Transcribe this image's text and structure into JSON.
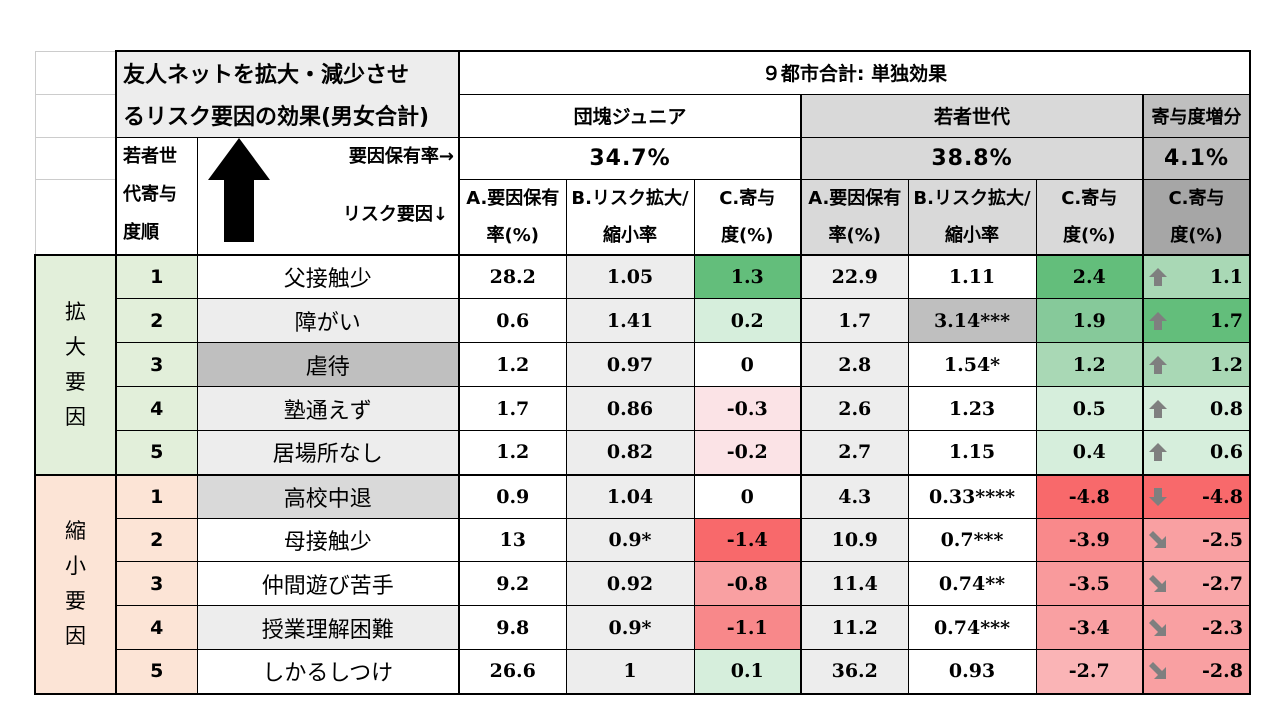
{
  "header": {
    "title_line1": "友人ネットを拡大・減少させ",
    "title_line2": "るリスク要因の効果(男女合計)",
    "total_label": "９都市合計: 単独効果",
    "group1": "団塊ジュニア",
    "group2": "若者世代",
    "group3": "寄与度増分",
    "rank_label": "若者世代寄与度順",
    "prevalence_label": "要因保有率→",
    "risk_label": "リスク要因↓",
    "rate1": "34.7%",
    "rate2": "38.8%",
    "rate3": "4.1%",
    "colA": "A.要因保有率(%)",
    "colB": "B.リスク拡大/縮小率",
    "colC": "C.寄与度(%)"
  },
  "categories": {
    "expand": "拡大要因",
    "shrink": "縮小要因"
  },
  "rows": [
    {
      "rank": "1",
      "factor": "父接触少",
      "a1": "28.2",
      "b1": "1.05",
      "c1": "1.3",
      "a2": "22.9",
      "b2": "1.11",
      "c2": "2.4",
      "inc": "1.1",
      "dir": "up"
    },
    {
      "rank": "2",
      "factor": "障がい",
      "a1": "0.6",
      "b1": "1.41",
      "c1": "0.2",
      "a2": "1.7",
      "b2": "3.14***",
      "c2": "1.9",
      "inc": "1.7",
      "dir": "up"
    },
    {
      "rank": "3",
      "factor": "虐待",
      "a1": "1.2",
      "b1": "0.97",
      "c1": "0",
      "a2": "2.8",
      "b2": "1.54*",
      "c2": "1.2",
      "inc": "1.2",
      "dir": "up"
    },
    {
      "rank": "4",
      "factor": "塾通えず",
      "a1": "1.7",
      "b1": "0.86",
      "c1": "-0.3",
      "a2": "2.6",
      "b2": "1.23",
      "c2": "0.5",
      "inc": "0.8",
      "dir": "up"
    },
    {
      "rank": "5",
      "factor": "居場所なし",
      "a1": "1.2",
      "b1": "0.82",
      "c1": "-0.2",
      "a2": "2.7",
      "b2": "1.15",
      "c2": "0.4",
      "inc": "0.6",
      "dir": "up"
    },
    {
      "rank": "1",
      "factor": "高校中退",
      "a1": "0.9",
      "b1": "1.04",
      "c1": "0",
      "a2": "4.3",
      "b2": "0.33****",
      "c2": "-4.8",
      "inc": "-4.8",
      "dir": "down"
    },
    {
      "rank": "2",
      "factor": "母接触少",
      "a1": "13",
      "b1": "0.9*",
      "c1": "-1.4",
      "a2": "10.9",
      "b2": "0.7***",
      "c2": "-3.9",
      "inc": "-2.5",
      "dir": "downright"
    },
    {
      "rank": "3",
      "factor": "仲間遊び苦手",
      "a1": "9.2",
      "b1": "0.92",
      "c1": "-0.8",
      "a2": "11.4",
      "b2": "0.74**",
      "c2": "-3.5",
      "inc": "-2.7",
      "dir": "downright"
    },
    {
      "rank": "4",
      "factor": "授業理解困難",
      "a1": "9.8",
      "b1": "0.9*",
      "c1": "-1.1",
      "a2": "11.2",
      "b2": "0.74***",
      "c2": "-3.4",
      "inc": "-2.3",
      "dir": "downright"
    },
    {
      "rank": "5",
      "factor": "しかるしつけ",
      "a1": "26.6",
      "b1": "1",
      "c1": "0.1",
      "a2": "36.2",
      "b2": "0.93",
      "c2": "-2.7",
      "inc": "-2.8",
      "dir": "downright"
    }
  ],
  "colors": {
    "expand_bg": "#e2efda",
    "shrink_bg": "#fce4d6",
    "gray_light": "#ededed",
    "gray_mid": "#d9d9d9",
    "gray_dark": "#bfbfbf",
    "gray_header": "#a6a6a6",
    "green_strong": "#63be7b",
    "green_mid": "#a9d8b5",
    "green_light": "#d6eedc",
    "red_strong": "#f8696b",
    "red_mid": "#f9a0a2",
    "red_light": "#fbe3e6",
    "arrow": "#7f7f7f"
  },
  "icons": {
    "up": "arrow-up-icon",
    "down": "arrow-down-icon",
    "downright": "arrow-down-right-icon",
    "big_up": "big-arrow-up-icon"
  }
}
